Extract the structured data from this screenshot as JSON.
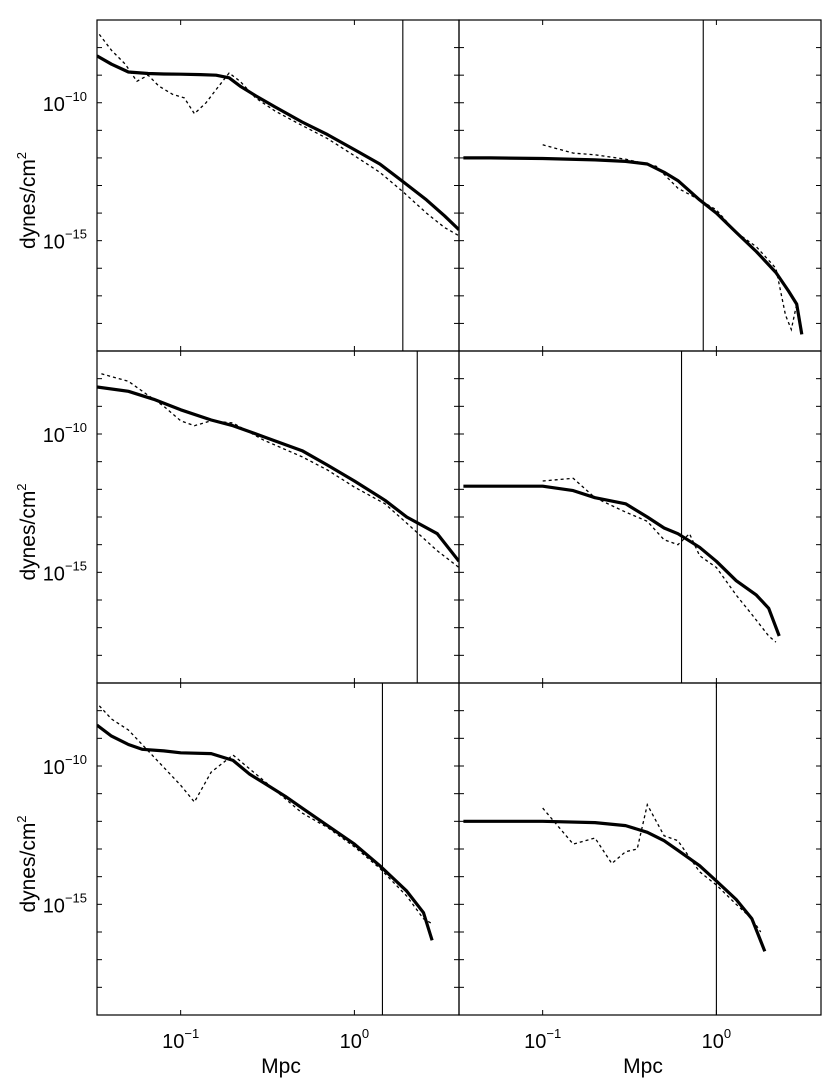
{
  "chart_data": [
    {
      "type": "line",
      "panel": "row1-left",
      "xlabel": "",
      "ylabel": "dynes/cm2",
      "xscale": "log",
      "yscale": "log",
      "xlim": [
        0.033,
        4.0
      ],
      "ylim": [
        1e-19,
        1e-07
      ],
      "yticks": [
        {
          "base": "10",
          "exp": "−10"
        },
        {
          "base": "10",
          "exp": "−15"
        }
      ],
      "xticks": [],
      "vline_x": 1.9,
      "series": [
        {
          "style": "solid",
          "x": [
            0.033,
            0.04,
            0.05,
            0.065,
            0.08,
            0.1,
            0.13,
            0.16,
            0.19,
            0.22,
            0.27,
            0.35,
            0.5,
            0.7,
            1.0,
            1.4,
            1.9,
            2.6,
            3.3,
            4.0
          ],
          "y": [
            5e-09,
            2.5e-09,
            1.3e-09,
            1.15e-09,
            1.1e-09,
            1.08e-09,
            1.05e-09,
            1e-09,
            8e-10,
            4e-10,
            1.8e-10,
            7e-11,
            2e-11,
            7e-12,
            2e-12,
            6e-13,
            1.4e-13,
            3e-14,
            8e-15,
            2.5e-15
          ]
        },
        {
          "style": "dotted",
          "x": [
            0.034,
            0.04,
            0.048,
            0.056,
            0.065,
            0.075,
            0.09,
            0.105,
            0.12,
            0.14,
            0.16,
            0.19,
            0.22,
            0.27,
            0.35,
            0.5,
            0.7,
            1.0,
            1.4,
            1.9,
            2.6,
            3.3,
            4.0
          ],
          "y": [
            3e-08,
            8e-09,
            2.5e-09,
            6e-10,
            1e-09,
            4e-10,
            2e-10,
            1.5e-10,
            4e-11,
            1e-10,
            3e-10,
            1.2e-09,
            6e-10,
            1.5e-10,
            5e-11,
            1.5e-11,
            5e-12,
            1.2e-12,
            3e-13,
            6e-14,
            1e-14,
            3e-15,
            1.5e-15
          ]
        }
      ]
    },
    {
      "type": "line",
      "panel": "row1-right",
      "xlabel": "",
      "ylabel": "",
      "xscale": "log",
      "yscale": "log",
      "xlim": [
        0.033,
        4.0
      ],
      "ylim": [
        1e-19,
        1e-07
      ],
      "yticks": [],
      "xticks": [],
      "vline_x": 0.84,
      "series": [
        {
          "style": "solid",
          "x": [
            0.035,
            0.05,
            0.1,
            0.2,
            0.3,
            0.4,
            0.5,
            0.6,
            0.8,
            1.0,
            1.3,
            1.7,
            2.2,
            2.6,
            2.9,
            3.1
          ],
          "y": [
            1e-12,
            1e-12,
            9.5e-13,
            8.5e-13,
            7.5e-13,
            6e-13,
            3e-13,
            1.5e-13,
            3e-14,
            1e-14,
            2e-15,
            4e-16,
            7e-17,
            1.5e-17,
            5e-18,
            4e-19
          ]
        },
        {
          "style": "dotted",
          "x": [
            0.1,
            0.15,
            0.2,
            0.3,
            0.45,
            0.6,
            0.8,
            1.0,
            1.3,
            1.7,
            2.2,
            2.5,
            2.7,
            2.9
          ],
          "y": [
            3e-12,
            1.5e-12,
            1.3e-12,
            9e-13,
            5e-13,
            8e-14,
            3e-14,
            1.3e-14,
            2e-15,
            6e-16,
            1e-16,
            2e-18,
            6e-19,
            5e-18
          ]
        }
      ]
    },
    {
      "type": "line",
      "panel": "row2-left",
      "xlabel": "",
      "ylabel": "dynes/cm2",
      "xscale": "log",
      "yscale": "log",
      "xlim": [
        0.033,
        4.0
      ],
      "ylim": [
        1e-19,
        1e-07
      ],
      "yticks": [
        {
          "base": "10",
          "exp": "−10"
        },
        {
          "base": "10",
          "exp": "−15"
        }
      ],
      "xticks": [],
      "vline_x": 2.3,
      "series": [
        {
          "style": "solid",
          "x": [
            0.033,
            0.05,
            0.07,
            0.1,
            0.15,
            0.2,
            0.3,
            0.5,
            0.7,
            1.0,
            1.5,
            2.0,
            3.0,
            4.0
          ],
          "y": [
            5e-09,
            3.5e-09,
            1.8e-09,
            7.5e-10,
            3.2e-10,
            2e-10,
            8e-11,
            2.5e-11,
            7.5e-12,
            2e-12,
            4e-13,
            1e-13,
            2.5e-14,
            2.5e-15
          ]
        },
        {
          "style": "dotted",
          "x": [
            0.035,
            0.05,
            0.065,
            0.08,
            0.1,
            0.12,
            0.15,
            0.2,
            0.3,
            0.5,
            0.7,
            1.0,
            1.5,
            2.0,
            3.0,
            4.0
          ],
          "y": [
            1.5e-08,
            8e-09,
            2.5e-09,
            1e-09,
            3e-10,
            2e-10,
            3e-10,
            2.5e-10,
            6e-11,
            1.5e-11,
            5e-12,
            1.2e-12,
            3e-13,
            6e-14,
            6e-15,
            1.5e-15
          ]
        }
      ]
    },
    {
      "type": "line",
      "panel": "row2-right",
      "xlabel": "",
      "ylabel": "",
      "xscale": "log",
      "yscale": "log",
      "xlim": [
        0.033,
        4.0
      ],
      "ylim": [
        1e-19,
        1e-07
      ],
      "yticks": [],
      "xticks": [],
      "vline_x": 0.63,
      "series": [
        {
          "style": "solid",
          "x": [
            0.035,
            0.05,
            0.1,
            0.15,
            0.2,
            0.3,
            0.4,
            0.5,
            0.6,
            0.8,
            1.0,
            1.3,
            1.7,
            2.0,
            2.3
          ],
          "y": [
            1.3e-12,
            1.3e-12,
            1.3e-12,
            9e-13,
            5e-13,
            3e-13,
            1e-13,
            4e-14,
            2.5e-14,
            8e-15,
            2.5e-15,
            5e-16,
            1.5e-16,
            5e-17,
            5e-18
          ]
        },
        {
          "style": "dotted",
          "x": [
            0.1,
            0.15,
            0.2,
            0.3,
            0.4,
            0.5,
            0.6,
            0.7,
            0.8,
            1.0,
            1.3,
            1.6,
            2.0,
            2.2
          ],
          "y": [
            2e-12,
            2.5e-12,
            5e-13,
            1.5e-13,
            7e-14,
            1.5e-14,
            1e-14,
            2.5e-14,
            4e-15,
            1.5e-15,
            1.5e-16,
            3e-17,
            5e-18,
            3e-18
          ]
        }
      ]
    },
    {
      "type": "line",
      "panel": "row3-left",
      "xlabel": "Mpc",
      "ylabel": "dynes/cm2",
      "xscale": "log",
      "yscale": "log",
      "xlim": [
        0.033,
        4.0
      ],
      "ylim": [
        1e-19,
        1e-07
      ],
      "yticks": [
        {
          "base": "10",
          "exp": "−10"
        },
        {
          "base": "10",
          "exp": "−15"
        }
      ],
      "xticks": [
        {
          "base": "10",
          "exp": "−1"
        },
        {
          "base": "10",
          "exp": "0"
        }
      ],
      "vline_x": 1.45,
      "series": [
        {
          "style": "solid",
          "x": [
            0.033,
            0.04,
            0.05,
            0.06,
            0.08,
            0.1,
            0.15,
            0.2,
            0.25,
            0.3,
            0.4,
            0.5,
            0.7,
            1.0,
            1.4,
            2.0,
            2.5,
            2.8
          ],
          "y": [
            3e-09,
            1.2e-09,
            6e-10,
            4e-10,
            3.5e-10,
            3e-10,
            2.8e-10,
            1.6e-10,
            5e-11,
            2.5e-11,
            8e-12,
            3e-12,
            7e-13,
            1.5e-13,
            2.5e-14,
            3e-15,
            5e-16,
            5e-17
          ]
        },
        {
          "style": "dotted",
          "x": [
            0.034,
            0.04,
            0.05,
            0.1,
            0.12,
            0.15,
            0.2,
            0.3,
            0.5,
            0.7,
            1.0,
            1.4,
            2.0,
            2.5,
            2.8
          ],
          "y": [
            1.5e-08,
            5e-09,
            2e-09,
            2e-11,
            5e-12,
            6e-11,
            2.5e-10,
            3e-11,
            2e-12,
            6e-13,
            1.2e-13,
            2e-14,
            2e-15,
            3e-16,
            2e-16
          ]
        }
      ]
    },
    {
      "type": "line",
      "panel": "row3-right",
      "xlabel": "Mpc",
      "ylabel": "",
      "xscale": "log",
      "yscale": "log",
      "xlim": [
        0.033,
        4.0
      ],
      "ylim": [
        1e-19,
        1e-07
      ],
      "yticks": [],
      "xticks": [
        {
          "base": "10",
          "exp": "−1"
        },
        {
          "base": "10",
          "exp": "0"
        }
      ],
      "vline_x": 1.0,
      "series": [
        {
          "style": "solid",
          "x": [
            0.035,
            0.05,
            0.1,
            0.2,
            0.3,
            0.4,
            0.5,
            0.6,
            0.8,
            1.0,
            1.3,
            1.6,
            1.9
          ],
          "y": [
            1e-12,
            1e-12,
            1e-12,
            9e-13,
            7e-13,
            4e-13,
            2e-13,
            9e-14,
            2.5e-14,
            7e-15,
            1.5e-15,
            3e-16,
            2e-17
          ]
        },
        {
          "style": "dotted",
          "x": [
            0.1,
            0.15,
            0.2,
            0.25,
            0.3,
            0.35,
            0.4,
            0.5,
            0.6,
            0.8,
            1.0,
            1.3,
            1.6,
            1.8
          ],
          "y": [
            3e-12,
            1.5e-13,
            2.5e-13,
            3e-14,
            8e-14,
            1e-13,
            4e-12,
            3e-13,
            2e-13,
            1.5e-14,
            5e-15,
            1e-15,
            3e-16,
            1e-16
          ]
        }
      ]
    }
  ]
}
